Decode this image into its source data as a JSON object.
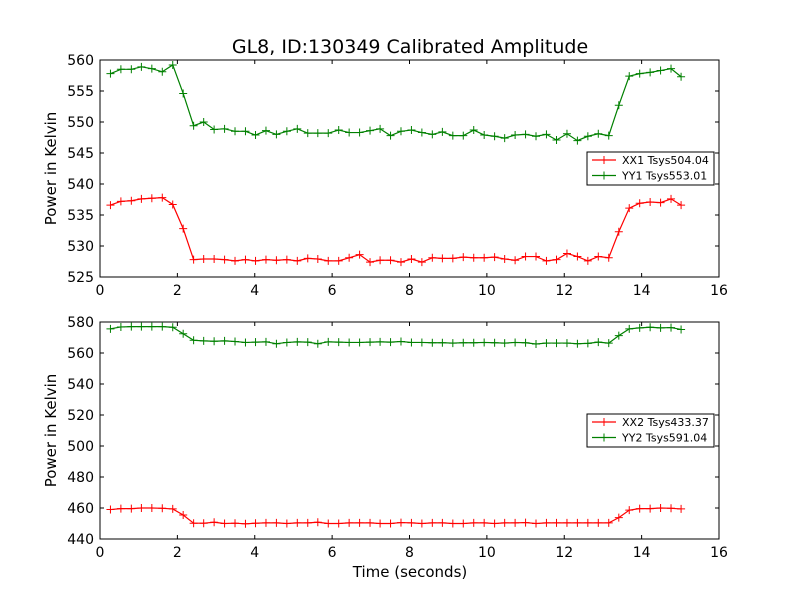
{
  "figure": {
    "title": "GL8, ID:130349 Calibrated Amplitude",
    "xlabel": "Time (seconds)"
  },
  "colors": {
    "red": "#ff0000",
    "green": "#008000",
    "axes": "#000000",
    "background": "#ffffff"
  },
  "chart_data": [
    {
      "type": "line",
      "title": "GL8, ID:130349 Calibrated Amplitude",
      "xlabel": "",
      "ylabel": "Power in Kelvin",
      "xlim": [
        0,
        16
      ],
      "ylim": [
        525,
        560
      ],
      "xticks": [
        0,
        2,
        4,
        6,
        8,
        10,
        12,
        14,
        16
      ],
      "yticks": [
        525,
        530,
        535,
        540,
        545,
        550,
        555,
        560
      ],
      "grid": false,
      "legend_position": "right",
      "x": [
        0.27,
        0.54,
        0.81,
        1.07,
        1.34,
        1.61,
        1.88,
        2.15,
        2.42,
        2.68,
        2.95,
        3.22,
        3.49,
        3.76,
        4.02,
        4.29,
        4.56,
        4.83,
        5.1,
        5.37,
        5.63,
        5.9,
        6.17,
        6.44,
        6.71,
        6.98,
        7.24,
        7.51,
        7.78,
        8.05,
        8.32,
        8.59,
        8.85,
        9.12,
        9.39,
        9.66,
        9.93,
        10.2,
        10.46,
        10.73,
        11.0,
        11.27,
        11.54,
        11.8,
        12.07,
        12.34,
        12.61,
        12.88,
        13.15,
        13.41,
        13.68,
        13.95,
        14.22,
        14.49,
        14.76,
        15.02
      ],
      "series": [
        {
          "name": "XX1 Tsys504.04",
          "color": "#ff0000",
          "values": [
            536.6,
            537.2,
            537.3,
            537.6,
            537.7,
            537.8,
            536.7,
            532.8,
            527.8,
            527.9,
            527.9,
            527.8,
            527.6,
            527.8,
            527.6,
            527.8,
            527.7,
            527.8,
            527.6,
            528.0,
            527.9,
            527.6,
            527.6,
            528.1,
            528.6,
            527.4,
            527.7,
            527.7,
            527.4,
            527.9,
            527.4,
            528.1,
            528.0,
            528.0,
            528.2,
            528.1,
            528.1,
            528.2,
            527.9,
            527.7,
            528.3,
            528.3,
            527.6,
            527.8,
            528.8,
            528.3,
            527.6,
            528.3,
            528.1,
            532.3,
            536.1,
            536.9,
            537.1,
            537.0,
            537.6,
            536.6
          ]
        },
        {
          "name": "YY1 Tsys553.01",
          "color": "#008000",
          "values": [
            557.8,
            558.5,
            558.5,
            558.9,
            558.6,
            558.1,
            559.2,
            554.6,
            549.4,
            550.0,
            548.8,
            548.9,
            548.5,
            548.5,
            547.9,
            548.6,
            548.0,
            548.5,
            548.9,
            548.2,
            548.2,
            548.2,
            548.7,
            548.3,
            548.3,
            548.6,
            548.9,
            547.8,
            548.5,
            548.7,
            548.3,
            548.0,
            548.4,
            547.8,
            547.8,
            548.7,
            547.9,
            547.7,
            547.4,
            547.9,
            548.0,
            547.7,
            548.0,
            547.1,
            548.1,
            547.0,
            547.7,
            548.1,
            547.8,
            552.7,
            557.4,
            557.8,
            558.0,
            558.3,
            558.6,
            557.3
          ]
        }
      ]
    },
    {
      "type": "line",
      "title": "",
      "xlabel": "Time (seconds)",
      "ylabel": "Power in Kelvin",
      "xlim": [
        0,
        16
      ],
      "ylim": [
        440,
        580
      ],
      "xticks": [
        0,
        2,
        4,
        6,
        8,
        10,
        12,
        14,
        16
      ],
      "yticks": [
        440,
        460,
        480,
        500,
        520,
        540,
        560,
        580
      ],
      "grid": false,
      "legend_position": "right",
      "x": [
        0.27,
        0.54,
        0.81,
        1.07,
        1.34,
        1.61,
        1.88,
        2.15,
        2.42,
        2.68,
        2.95,
        3.22,
        3.49,
        3.76,
        4.02,
        4.29,
        4.56,
        4.83,
        5.1,
        5.37,
        5.63,
        5.9,
        6.17,
        6.44,
        6.71,
        6.98,
        7.24,
        7.51,
        7.78,
        8.05,
        8.32,
        8.59,
        8.85,
        9.12,
        9.39,
        9.66,
        9.93,
        10.2,
        10.46,
        10.73,
        11.0,
        11.27,
        11.54,
        11.8,
        12.07,
        12.34,
        12.61,
        12.88,
        13.15,
        13.41,
        13.68,
        13.95,
        14.22,
        14.49,
        14.76,
        15.02
      ],
      "series": [
        {
          "name": "XX2 Tsys433.37",
          "color": "#ff0000",
          "values": [
            459.0,
            459.6,
            459.6,
            460.0,
            460.0,
            459.8,
            459.4,
            455.5,
            450.2,
            450.2,
            450.8,
            450.0,
            450.2,
            449.8,
            450.2,
            450.4,
            450.4,
            450.0,
            450.4,
            450.4,
            450.8,
            450.0,
            450.0,
            450.4,
            450.4,
            450.4,
            450.0,
            450.0,
            450.6,
            450.4,
            450.0,
            450.4,
            450.4,
            450.0,
            450.0,
            450.4,
            450.4,
            450.0,
            450.4,
            450.4,
            450.6,
            450.0,
            450.4,
            450.4,
            450.4,
            450.4,
            450.4,
            450.4,
            450.4,
            453.8,
            458.6,
            459.6,
            459.6,
            460.0,
            459.8,
            459.4
          ]
        },
        {
          "name": "YY2 Tsys591.04",
          "color": "#008000",
          "values": [
            575.6,
            576.8,
            577.0,
            577.0,
            577.0,
            577.0,
            576.6,
            572.4,
            568.2,
            567.8,
            567.6,
            567.8,
            567.4,
            566.8,
            567.0,
            567.2,
            566.0,
            566.8,
            567.2,
            567.0,
            566.0,
            567.2,
            567.0,
            566.8,
            566.8,
            567.0,
            567.2,
            567.0,
            567.4,
            566.8,
            566.8,
            566.6,
            566.6,
            566.4,
            566.6,
            566.6,
            566.8,
            566.6,
            566.4,
            566.8,
            566.6,
            565.8,
            566.4,
            566.4,
            566.4,
            566.0,
            566.2,
            567.0,
            566.4,
            571.2,
            575.6,
            576.2,
            576.6,
            576.2,
            576.4,
            575.2
          ]
        }
      ]
    }
  ]
}
